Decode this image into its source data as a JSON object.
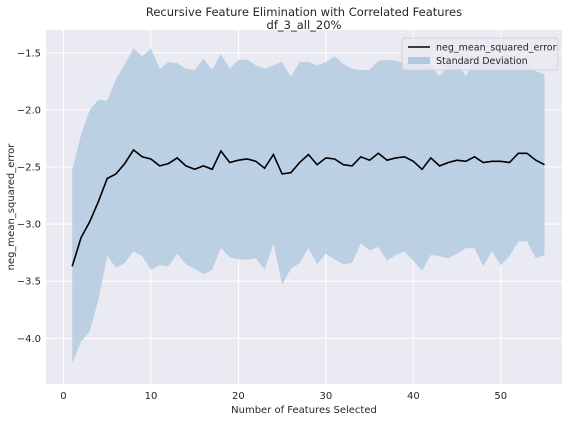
{
  "colors": {
    "background": "#eaeaf2",
    "grid": "#ffffff",
    "line": "#000000",
    "band": "#b0c9e0",
    "text": "#262626"
  },
  "chart_data": {
    "type": "line",
    "title": "Recursive Feature Elimination with Correlated Features",
    "subtitle": "df_3_all_20%",
    "xlabel": "Number of Features Selected",
    "ylabel": "neg_mean_squared_error",
    "xlim": [
      -2,
      57
    ],
    "ylim": [
      -4.4,
      -1.3
    ],
    "xticks": [
      0,
      10,
      20,
      30,
      40,
      50
    ],
    "yticks": [
      -4.0,
      -3.5,
      -3.0,
      -2.5,
      -2.0,
      -1.5
    ],
    "ytick_labels": [
      "−4.0",
      "−3.5",
      "−3.0",
      "−2.5",
      "−2.0",
      "−1.5"
    ],
    "grid": true,
    "legend_position": "top-right",
    "legend": [
      {
        "label": "neg_mean_squared_error",
        "kind": "line"
      },
      {
        "label": "Standard Deviation",
        "kind": "band"
      }
    ],
    "x": [
      1,
      2,
      3,
      4,
      5,
      6,
      7,
      8,
      9,
      10,
      11,
      12,
      13,
      14,
      15,
      16,
      17,
      18,
      19,
      20,
      21,
      22,
      23,
      24,
      25,
      26,
      27,
      28,
      29,
      30,
      31,
      32,
      33,
      34,
      35,
      36,
      37,
      38,
      39,
      40,
      41,
      42,
      43,
      44,
      45,
      46,
      47,
      48,
      49,
      50,
      51,
      52,
      53,
      54,
      55
    ],
    "series": [
      {
        "name": "neg_mean_squared_error",
        "values": [
          -3.37,
          -3.12,
          -2.98,
          -2.8,
          -2.6,
          -2.56,
          -2.47,
          -2.35,
          -2.41,
          -2.43,
          -2.49,
          -2.47,
          -2.42,
          -2.49,
          -2.52,
          -2.49,
          -2.52,
          -2.36,
          -2.46,
          -2.44,
          -2.43,
          -2.45,
          -2.51,
          -2.39,
          -2.56,
          -2.55,
          -2.46,
          -2.39,
          -2.48,
          -2.42,
          -2.43,
          -2.48,
          -2.49,
          -2.41,
          -2.44,
          -2.38,
          -2.44,
          -2.42,
          -2.41,
          -2.45,
          -2.52,
          -2.42,
          -2.49,
          -2.46,
          -2.44,
          -2.45,
          -2.41,
          -2.46,
          -2.45,
          -2.45,
          -2.46,
          -2.38,
          -2.38,
          -2.44,
          -2.48
        ]
      },
      {
        "name": "Standard Deviation",
        "upper": [
          -2.52,
          -2.22,
          -2.0,
          -1.91,
          -1.92,
          -1.73,
          -1.6,
          -1.46,
          -1.53,
          -1.46,
          -1.64,
          -1.58,
          -1.59,
          -1.64,
          -1.65,
          -1.55,
          -1.65,
          -1.51,
          -1.64,
          -1.56,
          -1.56,
          -1.61,
          -1.64,
          -1.61,
          -1.58,
          -1.71,
          -1.58,
          -1.58,
          -1.61,
          -1.58,
          -1.53,
          -1.6,
          -1.64,
          -1.65,
          -1.65,
          -1.57,
          -1.56,
          -1.57,
          -1.59,
          -1.58,
          -1.54,
          -1.62,
          -1.7,
          -1.62,
          -1.59,
          -1.7,
          -1.57,
          -1.56,
          -1.57,
          -1.53,
          -1.57,
          -1.58,
          -1.58,
          -1.66,
          -1.69
        ],
        "lower": [
          -4.22,
          -4.03,
          -3.94,
          -3.66,
          -3.28,
          -3.38,
          -3.34,
          -3.24,
          -3.28,
          -3.4,
          -3.36,
          -3.37,
          -3.26,
          -3.35,
          -3.39,
          -3.44,
          -3.4,
          -3.21,
          -3.29,
          -3.31,
          -3.31,
          -3.3,
          -3.4,
          -3.17,
          -3.53,
          -3.39,
          -3.34,
          -3.21,
          -3.35,
          -3.26,
          -3.31,
          -3.35,
          -3.34,
          -3.17,
          -3.23,
          -3.2,
          -3.32,
          -3.27,
          -3.24,
          -3.32,
          -3.41,
          -3.27,
          -3.28,
          -3.3,
          -3.26,
          -3.21,
          -3.21,
          -3.37,
          -3.24,
          -3.36,
          -3.28,
          -3.15,
          -3.15,
          -3.3,
          -3.27
        ]
      }
    ]
  }
}
